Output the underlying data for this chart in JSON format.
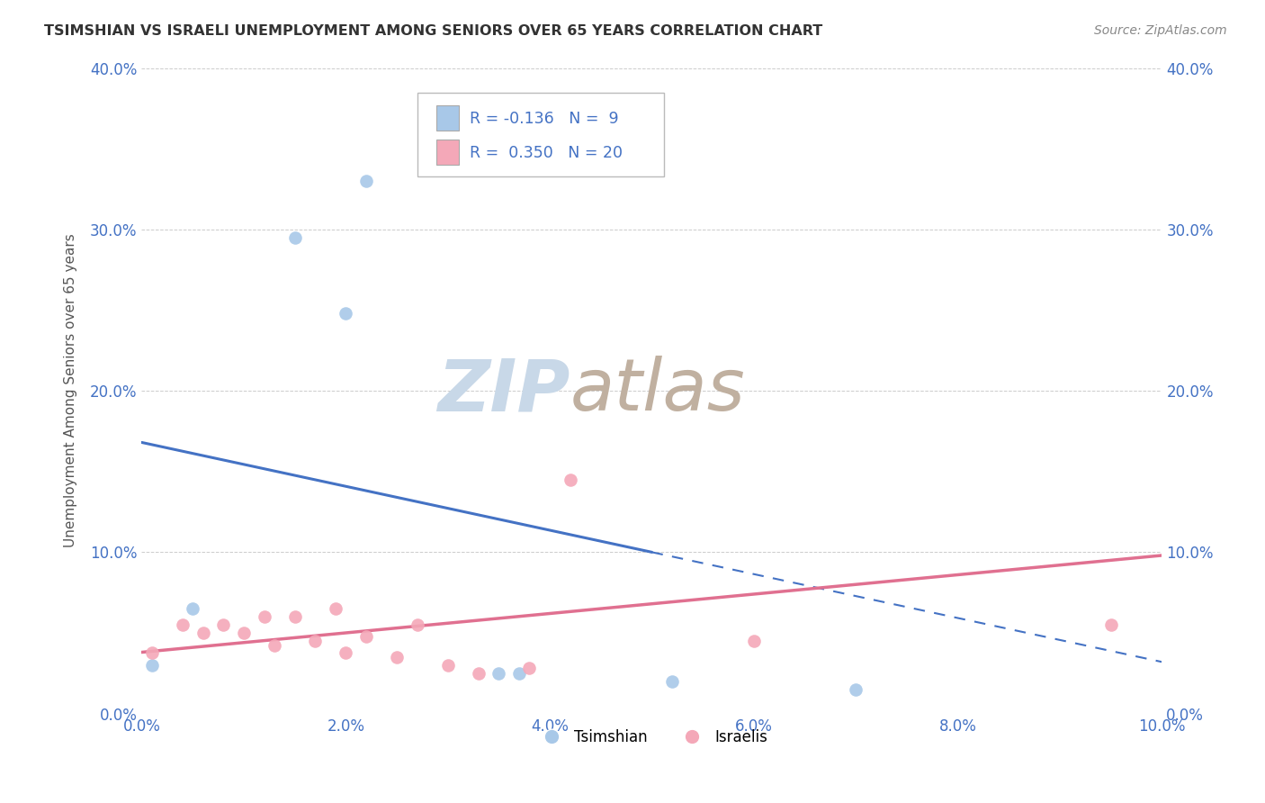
{
  "title": "TSIMSHIAN VS ISRAELI UNEMPLOYMENT AMONG SENIORS OVER 65 YEARS CORRELATION CHART",
  "source": "Source: ZipAtlas.com",
  "ylabel": "Unemployment Among Seniors over 65 years",
  "xlim": [
    0.0,
    0.1
  ],
  "ylim": [
    0.0,
    0.4
  ],
  "xticks": [
    0.0,
    0.02,
    0.04,
    0.06,
    0.08,
    0.1
  ],
  "yticks": [
    0.0,
    0.1,
    0.2,
    0.3,
    0.4
  ],
  "xticklabels": [
    "0.0%",
    "2.0%",
    "4.0%",
    "6.0%",
    "8.0%",
    "10.0%"
  ],
  "yticklabels": [
    "0.0%",
    "10.0%",
    "20.0%",
    "30.0%",
    "40.0%"
  ],
  "tsimshian_x": [
    0.001,
    0.005,
    0.015,
    0.02,
    0.022,
    0.035,
    0.037,
    0.052,
    0.07
  ],
  "tsimshian_y": [
    0.03,
    0.065,
    0.295,
    0.248,
    0.33,
    0.025,
    0.025,
    0.02,
    0.015
  ],
  "israeli_x": [
    0.001,
    0.004,
    0.006,
    0.008,
    0.01,
    0.012,
    0.013,
    0.015,
    0.017,
    0.019,
    0.02,
    0.022,
    0.025,
    0.027,
    0.03,
    0.033,
    0.038,
    0.042,
    0.06,
    0.095
  ],
  "israeli_y": [
    0.038,
    0.055,
    0.05,
    0.055,
    0.05,
    0.06,
    0.042,
    0.06,
    0.045,
    0.065,
    0.038,
    0.048,
    0.035,
    0.055,
    0.03,
    0.025,
    0.028,
    0.145,
    0.045,
    0.055
  ],
  "tsimshian_color": "#a8c8e8",
  "israeli_color": "#f4a8b8",
  "tsimshian_line_color": "#4472c4",
  "israeli_line_color": "#e07090",
  "tsimshian_line_solid_x0": 0.0,
  "tsimshian_line_solid_x1": 0.05,
  "tsimshian_line_y0": 0.168,
  "tsimshian_line_y1": 0.1,
  "tsimshian_line_dash_x0": 0.05,
  "tsimshian_line_dash_x1": 0.1,
  "tsimshian_line_dash_y0": 0.1,
  "tsimshian_line_dash_y1": 0.032,
  "israeli_line_x0": 0.0,
  "israeli_line_x1": 0.1,
  "israeli_line_y0": 0.038,
  "israeli_line_y1": 0.098,
  "R_tsimshian": -0.136,
  "N_tsimshian": 9,
  "R_israeli": 0.35,
  "N_israeli": 20,
  "legend_label_tsimshian": "Tsimshian",
  "legend_label_israeli": "Israelis",
  "background_color": "#ffffff",
  "watermark_zip_color": "#c8d8e8",
  "watermark_atlas_color": "#c0b0a0",
  "grid_color": "#cccccc",
  "tick_color": "#4472c4",
  "title_color": "#333333",
  "source_color": "#888888",
  "ylabel_color": "#555555"
}
